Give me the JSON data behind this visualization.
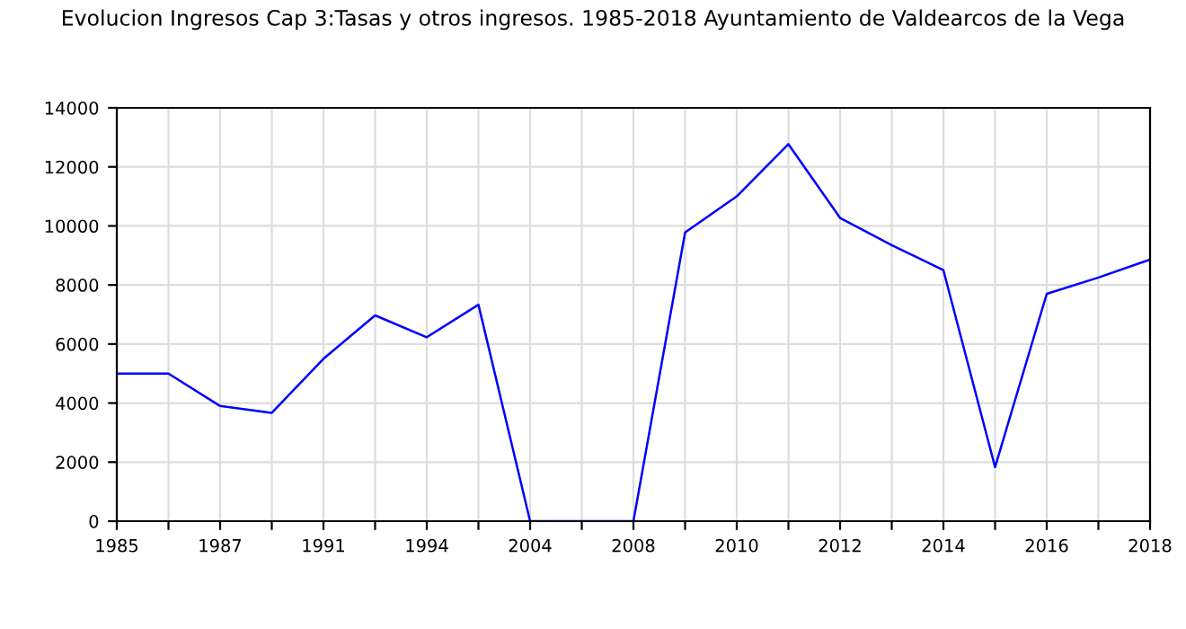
{
  "chart_data": {
    "type": "line",
    "title": "Evolucion Ingresos Cap 3:Tasas y otros ingresos. 1985-2018 Ayuntamiento de Valdearcos de la Vega",
    "categories": [
      "1985",
      null,
      "1987",
      null,
      "1991",
      null,
      "1994",
      null,
      "2004",
      null,
      "2008",
      null,
      "2010",
      null,
      "2012",
      null,
      "2014",
      null,
      "2016",
      null,
      "2018"
    ],
    "series": [
      {
        "color": "#0000ff",
        "values": [
          5000,
          5000,
          3900,
          3670,
          5500,
          6970,
          6230,
          7330,
          0,
          0,
          0,
          9780,
          11000,
          12770,
          10270,
          9350,
          8500,
          1830,
          7700,
          8250,
          8860
        ]
      }
    ],
    "ylim": [
      0,
      14000
    ],
    "yticks": [
      0,
      2000,
      4000,
      6000,
      8000,
      10000,
      12000,
      14000
    ],
    "grid": true,
    "legend": false,
    "marker": "none",
    "line_style": "solid"
  }
}
